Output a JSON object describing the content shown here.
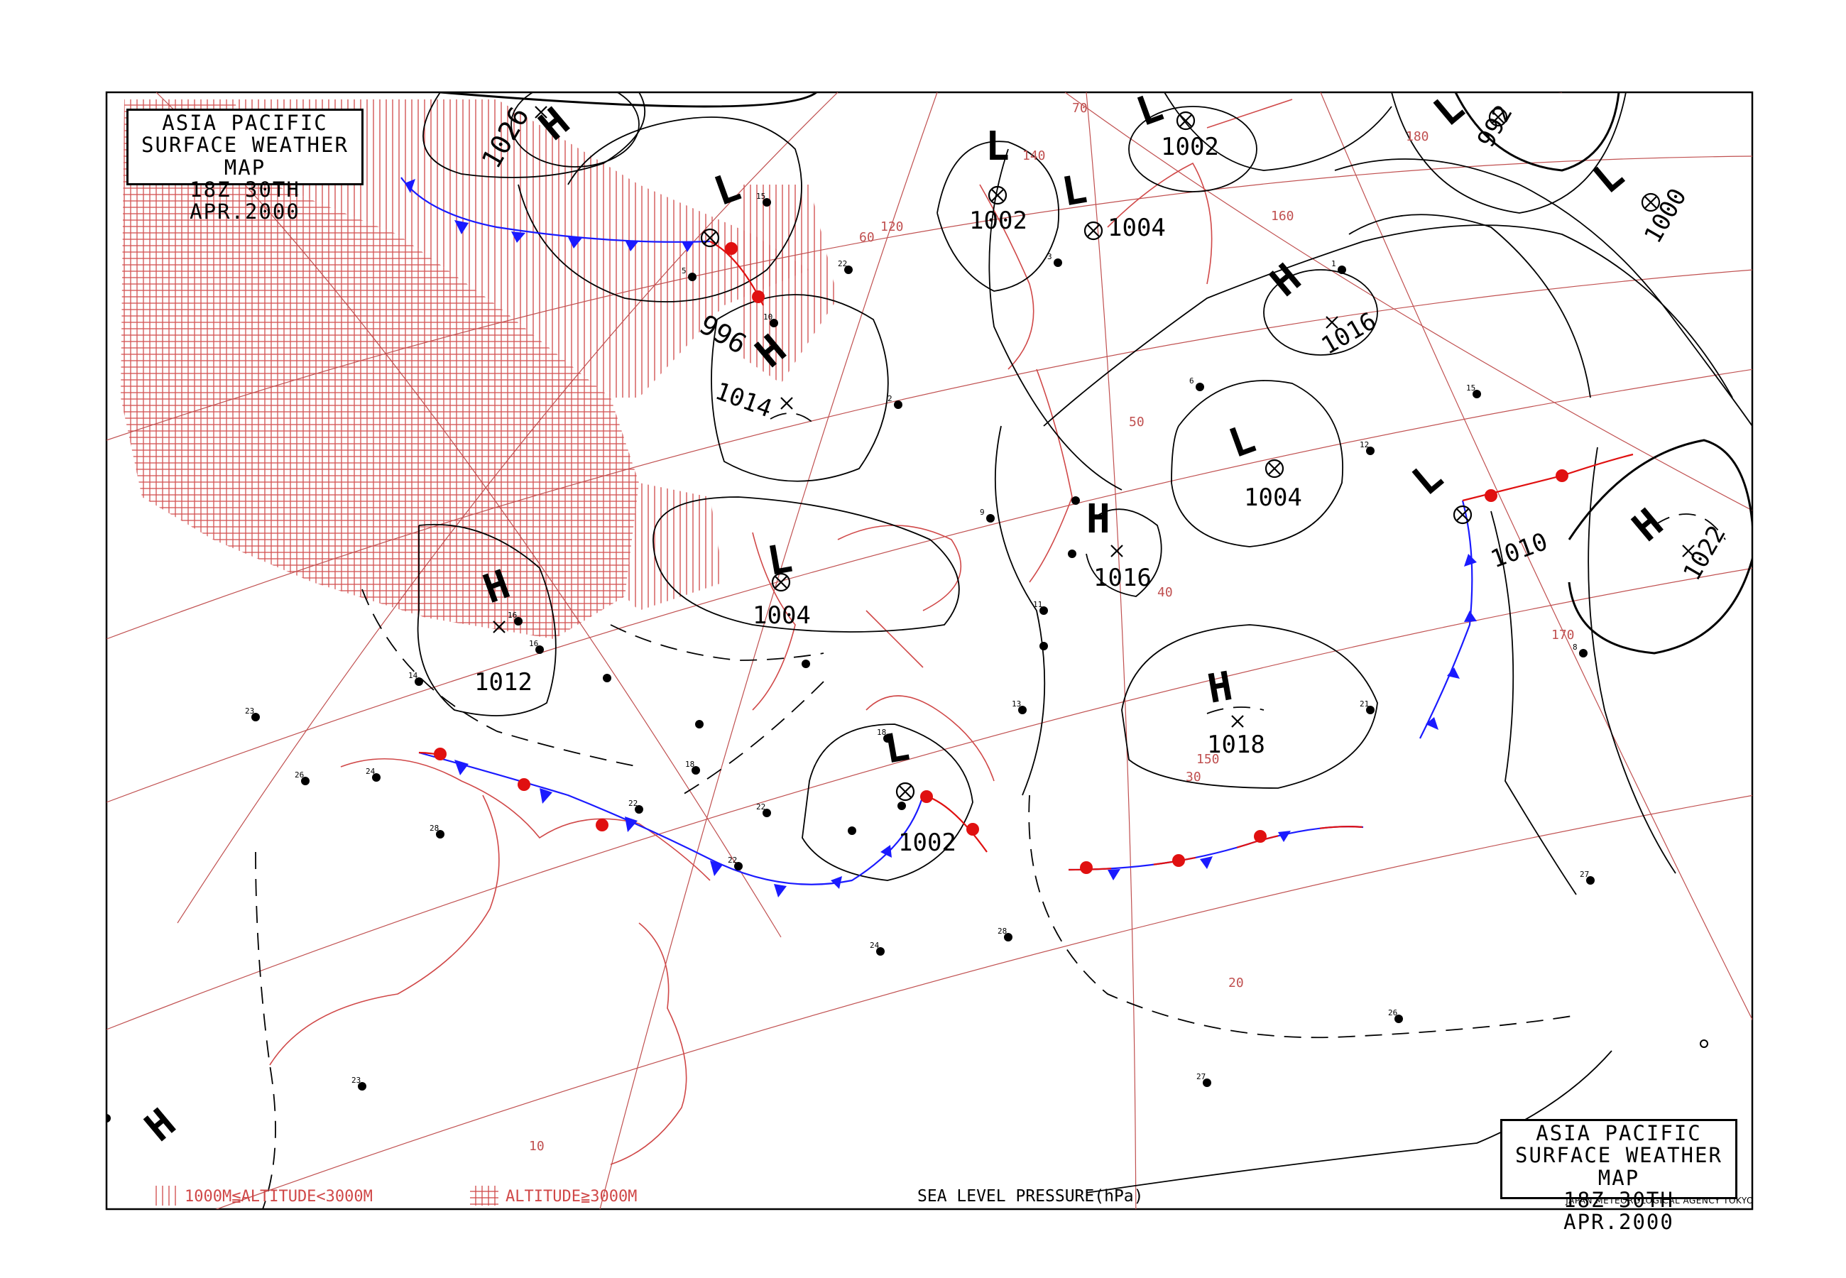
{
  "header": {
    "title_line1": "ASIA PACIFIC",
    "title_line2": "SURFACE WEATHER MAP",
    "title_line3": "18Z 30TH APR.2000"
  },
  "footer": {
    "credit": "JAPAN METEOROLOGICAL AGENCY TOKYO",
    "pressure_label": "SEA LEVEL PRESSURE(hPa)"
  },
  "legend": {
    "mid_altitude_label": "1000M≦ALTITUDE<3000M",
    "high_altitude_label": "ALTITUDE≧3000M"
  },
  "colors": {
    "isobar": "#000000",
    "graticule": "#c05050",
    "terrain": "#d04848",
    "cold_front": "#1a1aff",
    "warm_front": "#e01010",
    "coast": "#d04848"
  },
  "pressure_systems": [
    {
      "type": "H",
      "value": "1026"
    },
    {
      "type": "L",
      "value": "996"
    },
    {
      "type": "L",
      "value": "1002"
    },
    {
      "type": "L",
      "value": "1004"
    },
    {
      "type": "L",
      "value": "1002"
    },
    {
      "type": "L",
      "value": "992"
    },
    {
      "type": "L",
      "value": "1000"
    },
    {
      "type": "H",
      "value": "1016"
    },
    {
      "type": "H",
      "value": "1014"
    },
    {
      "type": "L",
      "value": "1004"
    },
    {
      "type": "L",
      "value": "1004"
    },
    {
      "type": "H",
      "value": "1016"
    },
    {
      "type": "L",
      "value": "1010"
    },
    {
      "type": "H",
      "value": "1022"
    },
    {
      "type": "H",
      "value": "1012"
    },
    {
      "type": "H",
      "value": "1018"
    },
    {
      "type": "L",
      "value": "1002"
    },
    {
      "type": "H",
      "value": ""
    }
  ],
  "latitude_labels": [
    "70",
    "60",
    "50",
    "40",
    "30",
    "20",
    "10"
  ],
  "longitude_labels": [
    "120",
    "140",
    "160",
    "180",
    "170",
    "150"
  ]
}
